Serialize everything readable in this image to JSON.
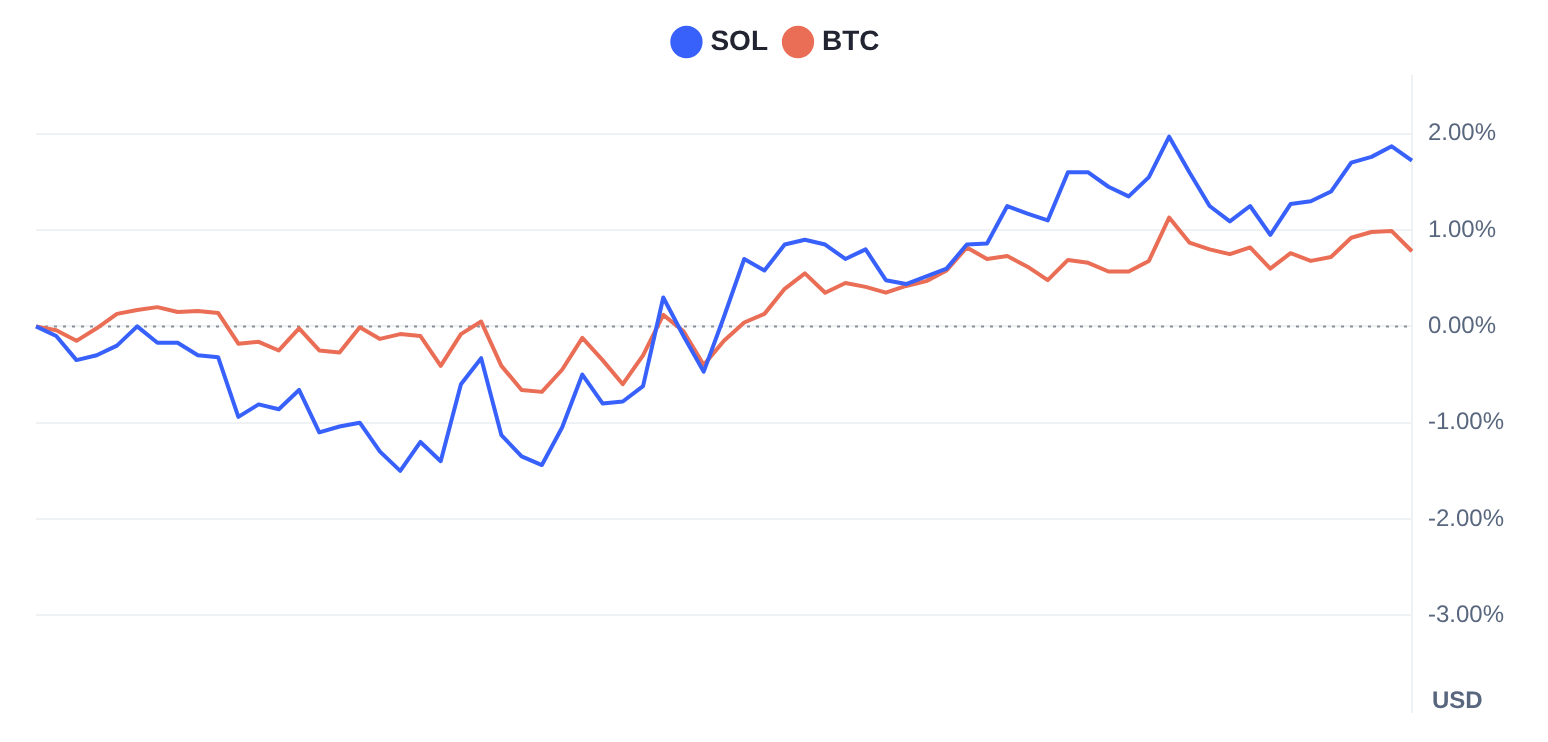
{
  "chart_data": {
    "type": "line",
    "ylim": [
      -4,
      2.6
    ],
    "tick_labels": "y",
    "grid": "y",
    "legend": "top",
    "marker": "none",
    "line_style": "solid",
    "categories": [
      null,
      null,
      null,
      null,
      null,
      null,
      null,
      null,
      null,
      null,
      null,
      null,
      null,
      null,
      null,
      null,
      null,
      null,
      null,
      null,
      null,
      null,
      null,
      null,
      null,
      null,
      null,
      null,
      null,
      null,
      null,
      null,
      null,
      null,
      null,
      null,
      null,
      null,
      null,
      null,
      null,
      null,
      null,
      null,
      null,
      null,
      null,
      null,
      null,
      null,
      null,
      null,
      null,
      null,
      null,
      null,
      null,
      null,
      null,
      null,
      null,
      null,
      null,
      null,
      null,
      null,
      null,
      null,
      null
    ],
    "yticks": [
      {
        "value": -3,
        "label": "-3.00%"
      },
      {
        "value": -2,
        "label": "-2.00%"
      },
      {
        "value": -1,
        "label": "-1.00%"
      },
      {
        "value": 0,
        "label": "0.00%"
      },
      {
        "value": 1,
        "label": "1.00%"
      },
      {
        "value": 2,
        "label": "2.00%"
      }
    ],
    "ref_lines": [
      {
        "axis": "y",
        "value": 0,
        "label": null,
        "color": "#8a8f99",
        "line_style": "dotted"
      }
    ],
    "annotations": [
      "USD"
    ],
    "series": [
      {
        "name": "SOL",
        "color": "#3861fb",
        "values": [
          0,
          -0.1,
          -0.35,
          -0.3,
          -0.2,
          0,
          -0.17,
          -0.17,
          -0.3,
          -0.32,
          -0.94,
          -0.81,
          -0.86,
          -0.66,
          -1.1,
          -1.04,
          -1,
          -1.3,
          -1.5,
          -1.2,
          -1.4,
          -0.6,
          -0.33,
          -1.13,
          -1.35,
          -1.44,
          -1.05,
          -0.5,
          -0.8,
          -0.78,
          -0.62,
          0.3,
          -0.1,
          -0.47,
          0.1,
          0.7,
          0.58,
          0.85,
          0.9,
          0.85,
          0.7,
          0.8,
          0.48,
          0.44,
          0.52,
          0.6,
          0.85,
          0.86,
          1.25,
          1.17,
          1.1,
          1.6,
          1.6,
          1.45,
          1.35,
          1.55,
          1.97,
          1.6,
          1.25,
          1.09,
          1.25,
          0.95,
          1.27,
          1.3,
          1.4,
          1.7,
          1.76,
          1.87,
          1.72
        ]
      },
      {
        "name": "BTC",
        "color": "#ea6d55",
        "values": [
          0,
          -0.04,
          -0.15,
          -0.02,
          0.13,
          0.17,
          0.2,
          0.15,
          0.16,
          0.14,
          -0.18,
          -0.16,
          -0.25,
          -0.02,
          -0.25,
          -0.27,
          -0.01,
          -0.13,
          -0.08,
          -0.1,
          -0.41,
          -0.08,
          0.05,
          -0.41,
          -0.66,
          -0.68,
          -0.45,
          -0.12,
          -0.35,
          -0.6,
          -0.3,
          0.12,
          -0.05,
          -0.4,
          -0.15,
          0.04,
          0.13,
          0.39,
          0.55,
          0.35,
          0.45,
          0.41,
          0.35,
          0.42,
          0.47,
          0.58,
          0.82,
          0.7,
          0.73,
          0.62,
          0.48,
          0.69,
          0.66,
          0.57,
          0.57,
          0.68,
          1.13,
          0.87,
          0.8,
          0.75,
          0.82,
          0.6,
          0.76,
          0.68,
          0.72,
          0.92,
          0.98,
          0.99,
          0.78
        ]
      }
    ]
  }
}
